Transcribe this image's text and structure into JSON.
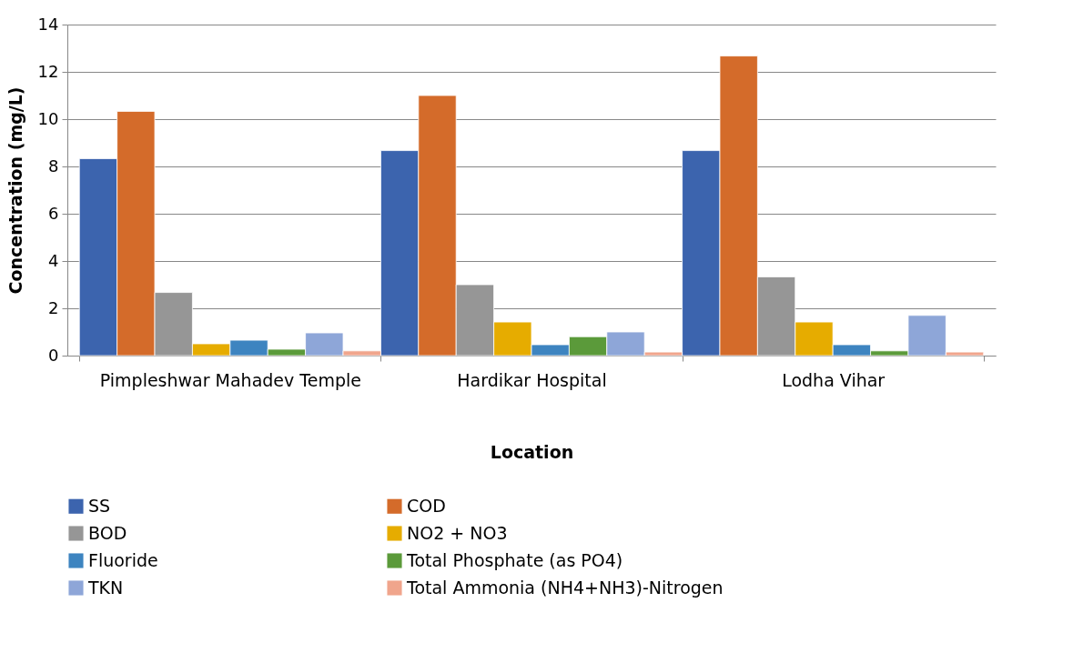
{
  "chart_data": {
    "type": "bar",
    "xlabel": "Location",
    "ylabel": "Concentration (mg/L)",
    "categories": [
      "Pimpleshwar Mahadev Temple",
      "Hardikar Hospital",
      "Lodha Vihar"
    ],
    "series": [
      {
        "name": "SS",
        "color": "#3c64ae",
        "values": [
          8.33,
          8.67,
          8.67
        ]
      },
      {
        "name": "COD",
        "color": "#d46b2a",
        "values": [
          10.33,
          11,
          12.67
        ]
      },
      {
        "name": "BOD",
        "color": "#969696",
        "values": [
          2.67,
          3,
          3.33
        ]
      },
      {
        "name": "NO2 + NO3",
        "color": "#e6ac00",
        "values": [
          0.5,
          1.42,
          1.42
        ]
      },
      {
        "name": "Fluoride",
        "color": "#3d84c0",
        "values": [
          0.65,
          0.46,
          0.46
        ]
      },
      {
        "name": "Total Phosphate (as PO4)",
        "color": "#5b9a3a",
        "values": [
          0.27,
          0.8,
          0.2
        ]
      },
      {
        "name": "TKN",
        "color": "#8ea6d8",
        "values": [
          0.96,
          1,
          1.7
        ]
      },
      {
        "name": "Total Ammonia (NH4+NH3)-Nitrogen",
        "color": "#f0a58c",
        "values": [
          0.2,
          0.15,
          0.15
        ]
      }
    ],
    "ylim": [
      0,
      14
    ],
    "yticks": [
      0,
      2,
      4,
      6,
      8,
      10,
      12,
      14
    ],
    "grid": "y",
    "legend": "bottom"
  }
}
